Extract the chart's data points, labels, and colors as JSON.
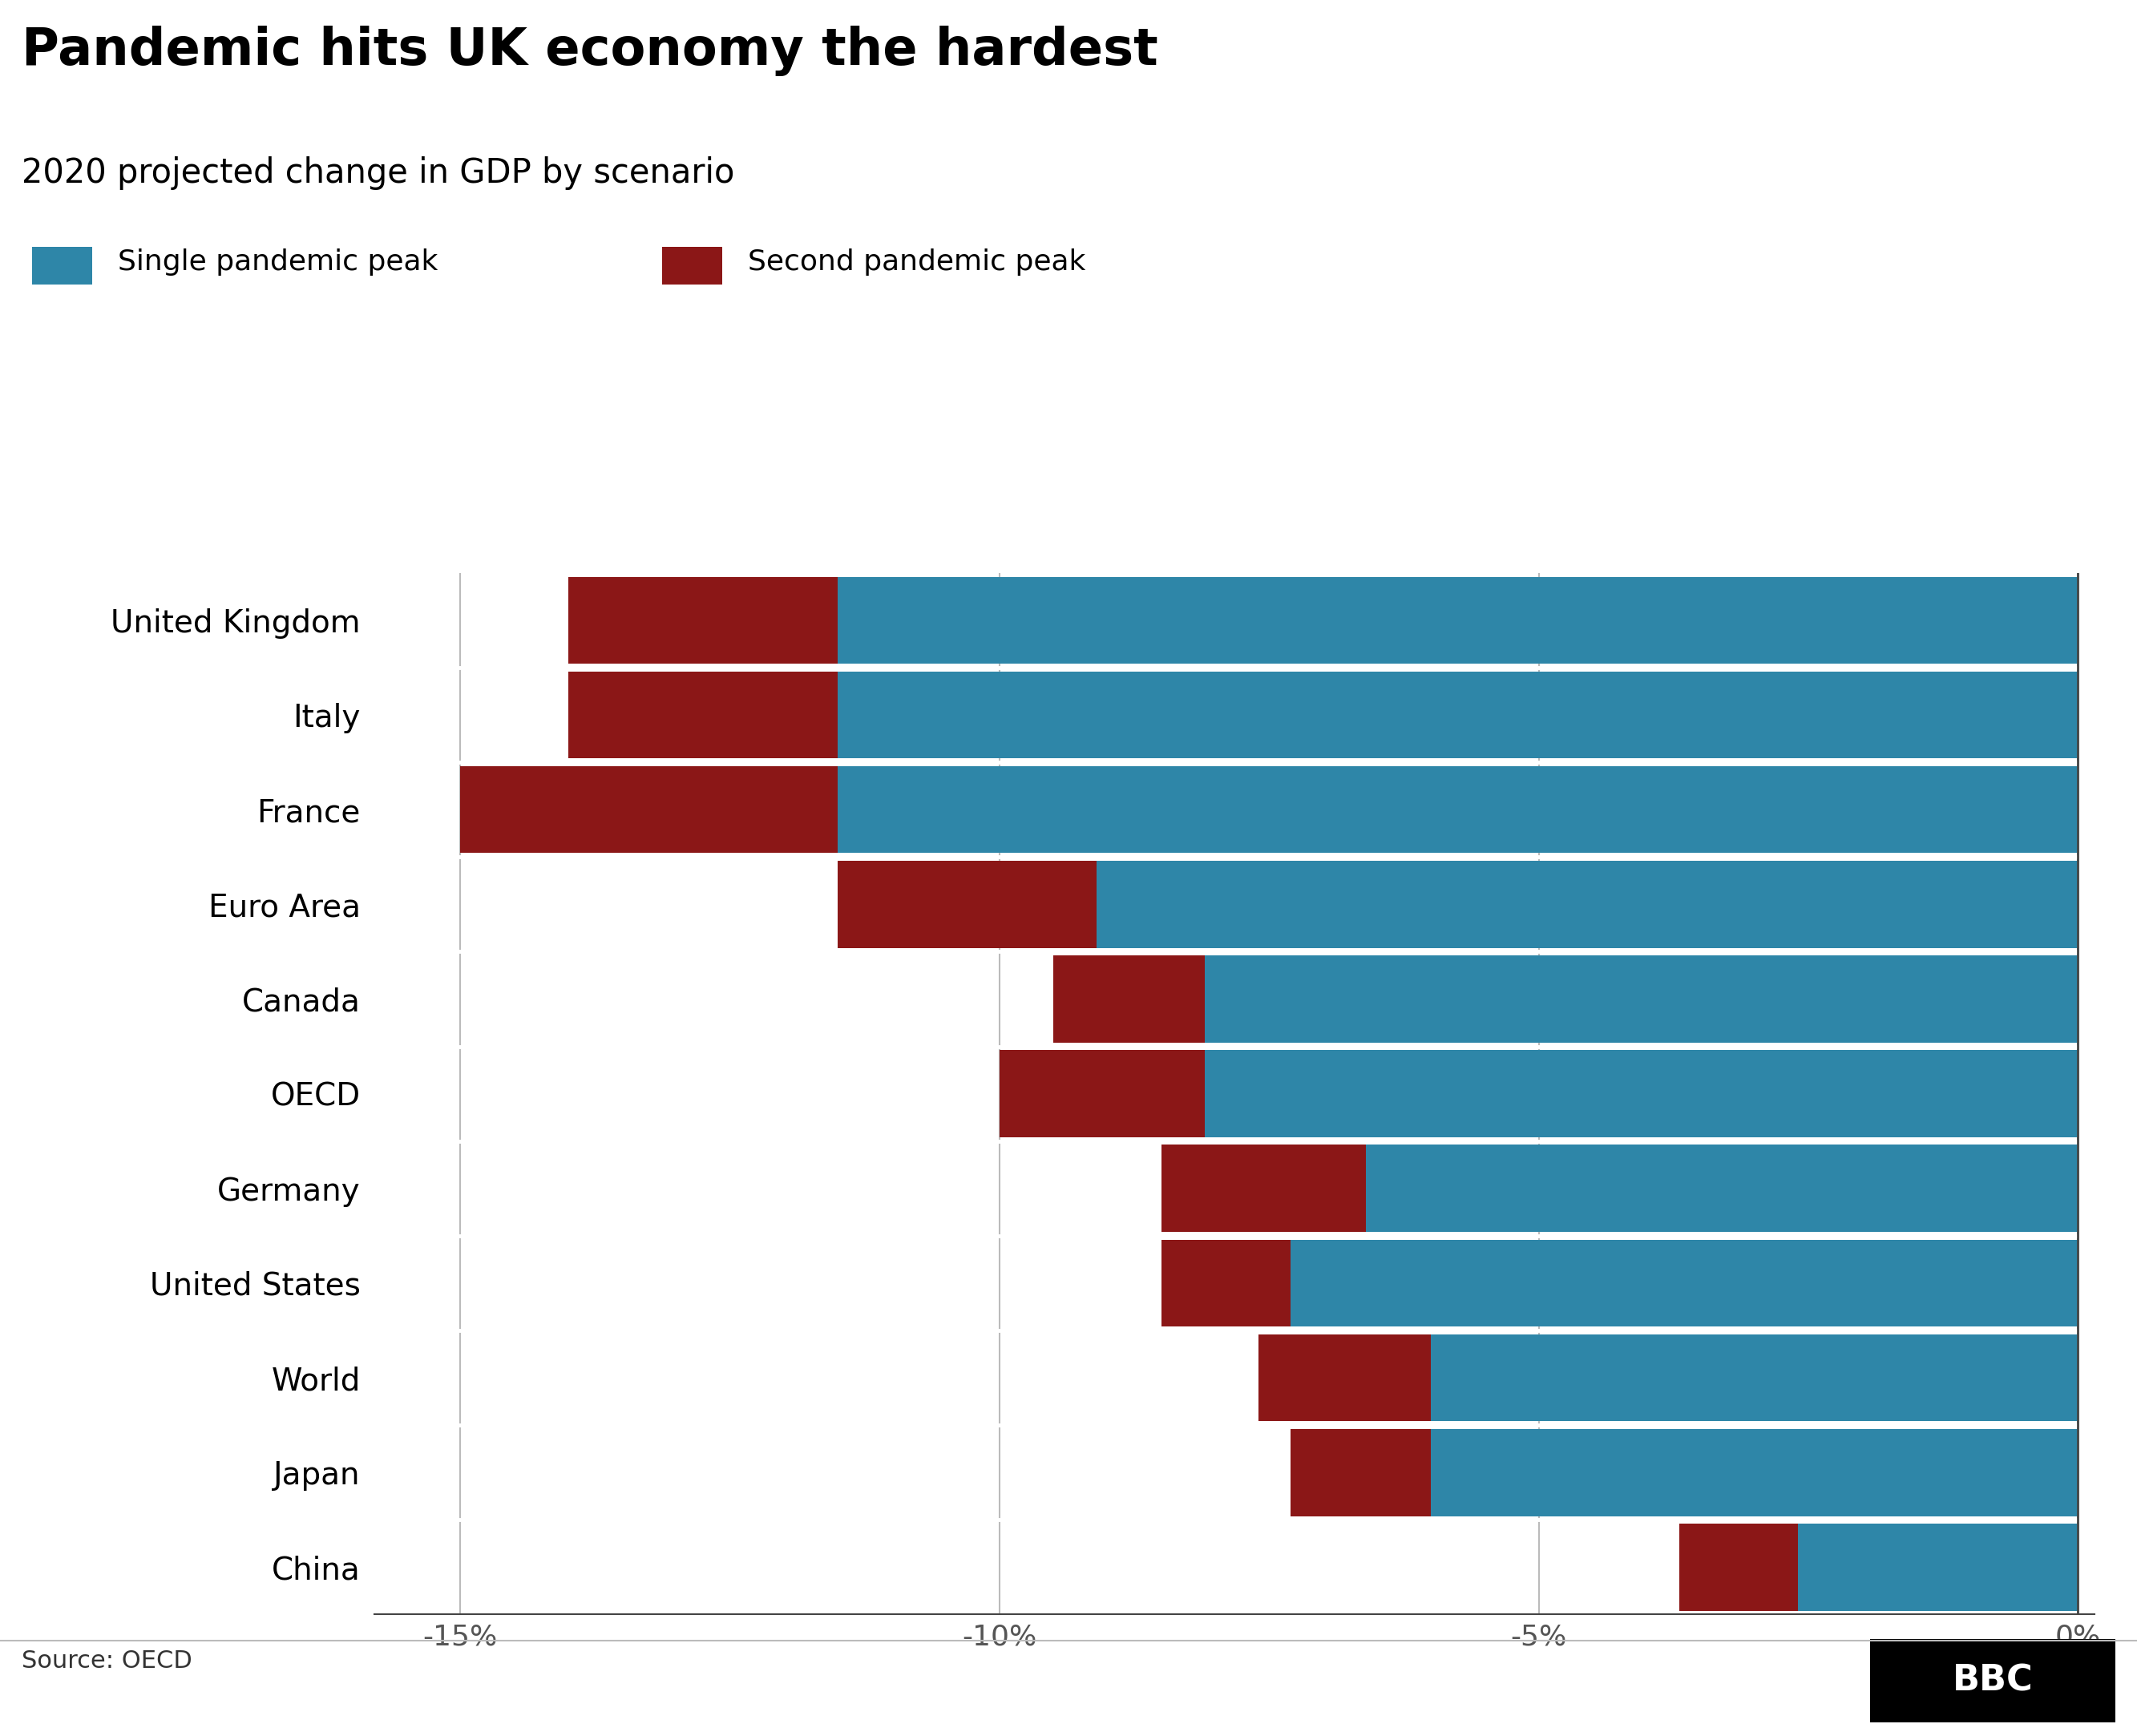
{
  "title": "Pandemic hits UK economy the hardest",
  "subtitle": "2020 projected change in GDP by scenario",
  "legend_single": "Single pandemic peak",
  "legend_second": "Second pandemic peak",
  "source": "Source: OECD",
  "categories": [
    "United Kingdom",
    "Italy",
    "France",
    "Euro Area",
    "Canada",
    "OECD",
    "Germany",
    "United States",
    "World",
    "Japan",
    "China"
  ],
  "single_peak": [
    -11.5,
    -11.5,
    -11.5,
    -9.1,
    -8.1,
    -8.1,
    -6.6,
    -7.3,
    -6.0,
    -6.0,
    -2.6
  ],
  "second_peak": [
    -14.0,
    -14.0,
    -15.0,
    -11.5,
    -9.5,
    -10.0,
    -8.5,
    -8.5,
    -7.6,
    -7.3,
    -3.7
  ],
  "color_single": "#2E86A8",
  "color_second": "#8B1717",
  "background_color": "#ffffff",
  "xlim_left": -15.8,
  "xlim_right": 0.15,
  "xticks": [
    -15,
    -10,
    -5,
    0
  ],
  "xlabel_labels": [
    "-15%",
    "-10%",
    "-5%",
    "0%"
  ],
  "title_fontsize": 46,
  "subtitle_fontsize": 30,
  "label_fontsize": 28,
  "tick_fontsize": 26,
  "legend_fontsize": 26,
  "source_fontsize": 22,
  "bar_height": 0.92,
  "title_color": "#000000",
  "subtitle_color": "#000000",
  "label_color": "#000000",
  "tick_color": "#555555",
  "grid_color": "#bbbbbb",
  "bbc_bg": "#000000",
  "bbc_text": "#ffffff"
}
